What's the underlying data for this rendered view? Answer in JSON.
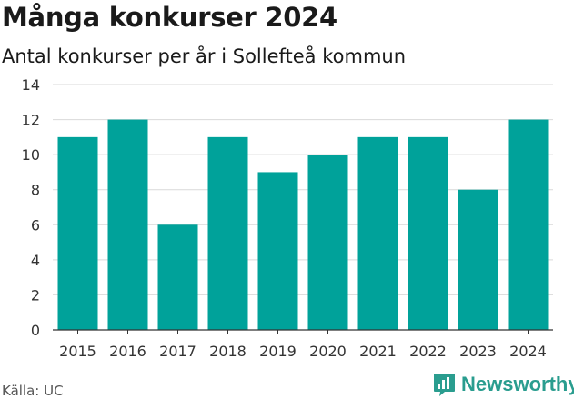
{
  "header": {
    "title": "Många konkurser 2024",
    "subtitle": "Antal konkurser per år i Sollefteå kommun"
  },
  "footer": {
    "source": "Källa: UC",
    "brand": "Newsworthy"
  },
  "colors": {
    "bar": "#00a29a",
    "grid": "#d9d9d9",
    "axis": "#333333",
    "brand": "#2a9d8f"
  },
  "chart_data": {
    "type": "bar",
    "categories": [
      "2015",
      "2016",
      "2017",
      "2018",
      "2019",
      "2020",
      "2021",
      "2022",
      "2023",
      "2024"
    ],
    "values": [
      11,
      12,
      6,
      11,
      9,
      10,
      11,
      11,
      8,
      12
    ],
    "title": "Många konkurser 2024",
    "subtitle": "Antal konkurser per år i Sollefteå kommun",
    "xlabel": "",
    "ylabel": "",
    "ylim": [
      0,
      14
    ],
    "yticks": [
      0,
      2,
      4,
      6,
      8,
      10,
      12,
      14
    ],
    "grid": true,
    "legend": "none"
  }
}
